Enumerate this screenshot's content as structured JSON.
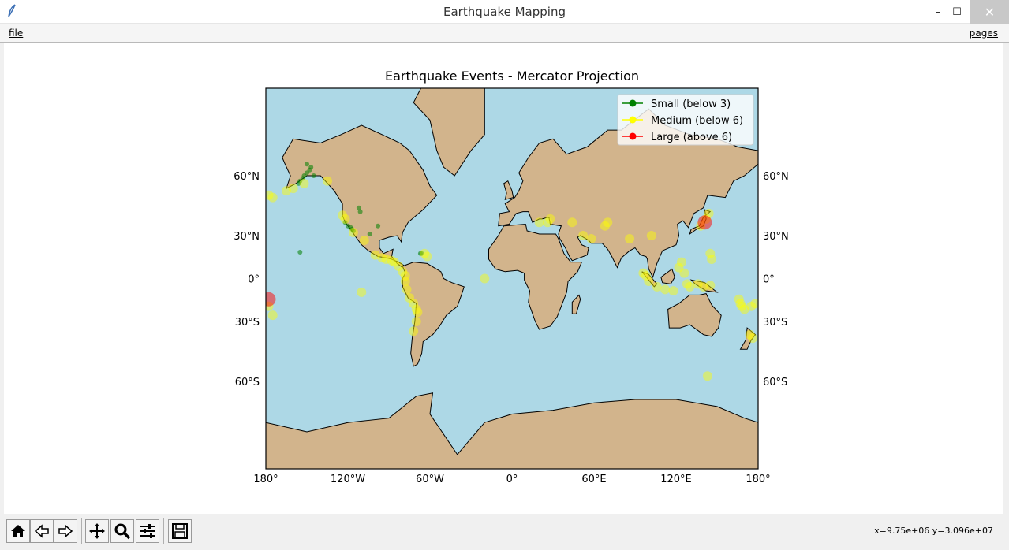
{
  "window": {
    "title": "Earthquake Mapping",
    "icon": "feather-icon",
    "controls": {
      "minimize": "–",
      "maximize": "☐",
      "close": "✕"
    }
  },
  "menu": {
    "file": "file",
    "pages": "pages"
  },
  "colors": {
    "ocean": "#add8e6",
    "land": "#d2b48c",
    "small": "#008000",
    "medium": "#ffff00",
    "large": "#ff0000",
    "borders_us_sa": "#a52a2a"
  },
  "chart_data": {
    "type": "scatter",
    "title": "Earthquake Events - Mercator Projection",
    "projection": "Mercator",
    "xlim": [
      -180,
      180
    ],
    "ylim": [
      -80,
      80
    ],
    "x_ticks": [
      "180°",
      "120°W",
      "60°W",
      "0°",
      "60°E",
      "120°E",
      "180°"
    ],
    "x_tick_values": [
      -180,
      -120,
      -60,
      0,
      60,
      120,
      180
    ],
    "y_ticks": [
      "60°N",
      "30°N",
      "0°",
      "30°S",
      "60°S"
    ],
    "y_tick_values": [
      60,
      30,
      0,
      -30,
      -60
    ],
    "legend": {
      "placement": "top-right",
      "entries": [
        {
          "label": "Small (below 3)",
          "color": "#008000"
        },
        {
          "label": "Medium (below 6)",
          "color": "#ffff00"
        },
        {
          "label": "Large (above 6)",
          "color": "#ff0000"
        }
      ]
    },
    "series": [
      {
        "name": "Small (below 3)",
        "color": "#008000",
        "points": [
          {
            "lon": -150,
            "lat": 61
          },
          {
            "lon": -152,
            "lat": 60
          },
          {
            "lon": -148,
            "lat": 62
          },
          {
            "lon": -153,
            "lat": 59
          },
          {
            "lon": -155,
            "lat": 58
          },
          {
            "lon": -147,
            "lat": 63
          },
          {
            "lon": -150,
            "lat": 64
          },
          {
            "lon": -145,
            "lat": 60
          },
          {
            "lon": -156,
            "lat": 57
          },
          {
            "lon": -118,
            "lat": 35
          },
          {
            "lon": -117,
            "lat": 34
          },
          {
            "lon": -120,
            "lat": 36
          },
          {
            "lon": -116,
            "lat": 33
          },
          {
            "lon": -122,
            "lat": 38
          },
          {
            "lon": -111,
            "lat": 44
          },
          {
            "lon": -112,
            "lat": 46
          },
          {
            "lon": -98,
            "lat": 36
          },
          {
            "lon": -104,
            "lat": 31
          },
          {
            "lon": -155,
            "lat": 19
          },
          {
            "lon": -66,
            "lat": 18
          },
          {
            "lon": -67,
            "lat": 18
          }
        ]
      },
      {
        "name": "Medium (below 6)",
        "color": "#ffff00",
        "points": [
          {
            "lon": -178,
            "lat": 52
          },
          {
            "lon": -175,
            "lat": 51
          },
          {
            "lon": -160,
            "lat": 55
          },
          {
            "lon": -165,
            "lat": 54
          },
          {
            "lon": -152,
            "lat": 57
          },
          {
            "lon": -135,
            "lat": 58
          },
          {
            "lon": -122,
            "lat": 40
          },
          {
            "lon": -124,
            "lat": 42
          },
          {
            "lon": -116,
            "lat": 32
          },
          {
            "lon": -108,
            "lat": 27
          },
          {
            "lon": -100,
            "lat": 17
          },
          {
            "lon": -95,
            "lat": 15
          },
          {
            "lon": -92,
            "lat": 14
          },
          {
            "lon": -88,
            "lat": 13
          },
          {
            "lon": -86,
            "lat": 12
          },
          {
            "lon": -83,
            "lat": 9
          },
          {
            "lon": -80,
            "lat": 5
          },
          {
            "lon": -78,
            "lat": 2
          },
          {
            "lon": -78,
            "lat": -2
          },
          {
            "lon": -77,
            "lat": -8
          },
          {
            "lon": -75,
            "lat": -14
          },
          {
            "lon": -72,
            "lat": -18
          },
          {
            "lon": -70,
            "lat": -22
          },
          {
            "lon": -69,
            "lat": -24
          },
          {
            "lon": -70,
            "lat": -30
          },
          {
            "lon": -72,
            "lat": -36
          },
          {
            "lon": -64,
            "lat": 18
          },
          {
            "lon": -62,
            "lat": 16
          },
          {
            "lon": -20,
            "lat": 0
          },
          {
            "lon": -110,
            "lat": -10
          },
          {
            "lon": 20,
            "lat": 38
          },
          {
            "lon": 26,
            "lat": 38
          },
          {
            "lon": 28,
            "lat": 40
          },
          {
            "lon": 44,
            "lat": 38
          },
          {
            "lon": 52,
            "lat": 30
          },
          {
            "lon": 58,
            "lat": 28
          },
          {
            "lon": 68,
            "lat": 36
          },
          {
            "lon": 70,
            "lat": 38
          },
          {
            "lon": 86,
            "lat": 28
          },
          {
            "lon": 102,
            "lat": 30
          },
          {
            "lon": 96,
            "lat": 4
          },
          {
            "lon": 98,
            "lat": 2
          },
          {
            "lon": 100,
            "lat": -2
          },
          {
            "lon": 106,
            "lat": -6
          },
          {
            "lon": 112,
            "lat": -8
          },
          {
            "lon": 118,
            "lat": -9
          },
          {
            "lon": 122,
            "lat": 8
          },
          {
            "lon": 124,
            "lat": 12
          },
          {
            "lon": 126,
            "lat": 4
          },
          {
            "lon": 128,
            "lat": -4
          },
          {
            "lon": 130,
            "lat": -6
          },
          {
            "lon": 136,
            "lat": -4
          },
          {
            "lon": 140,
            "lat": -6
          },
          {
            "lon": 145,
            "lat": -5
          },
          {
            "lon": 138,
            "lat": 36
          },
          {
            "lon": 142,
            "lat": 40
          },
          {
            "lon": 144,
            "lat": 43
          },
          {
            "lon": 146,
            "lat": 14
          },
          {
            "lon": 145,
            "lat": 18
          },
          {
            "lon": 166,
            "lat": -15
          },
          {
            "lon": 167,
            "lat": -18
          },
          {
            "lon": 168,
            "lat": -20
          },
          {
            "lon": 170,
            "lat": -22
          },
          {
            "lon": 175,
            "lat": -20
          },
          {
            "lon": 176,
            "lat": -40
          },
          {
            "lon": 174,
            "lat": -38
          },
          {
            "lon": 143,
            "lat": -58
          },
          {
            "lon": 178,
            "lat": -18
          },
          {
            "lon": -178,
            "lat": -20
          },
          {
            "lon": -175,
            "lat": -26
          }
        ]
      },
      {
        "name": "Large (above 6)",
        "color": "#ff0000",
        "points": [
          {
            "lon": 141,
            "lat": 38
          },
          {
            "lon": -178,
            "lat": -15
          }
        ]
      }
    ]
  },
  "toolbar": {
    "buttons": [
      {
        "name": "home-button",
        "icon": "home-icon"
      },
      {
        "name": "back-button",
        "icon": "arrow-left-icon"
      },
      {
        "name": "forward-button",
        "icon": "arrow-right-icon"
      },
      {
        "name": "pan-button",
        "icon": "move-icon"
      },
      {
        "name": "zoom-button",
        "icon": "magnifier-icon"
      },
      {
        "name": "subplots-button",
        "icon": "sliders-icon"
      },
      {
        "name": "save-button",
        "icon": "floppy-disk-icon"
      }
    ],
    "coordinates": "x=9.75e+06 y=3.096e+07"
  }
}
